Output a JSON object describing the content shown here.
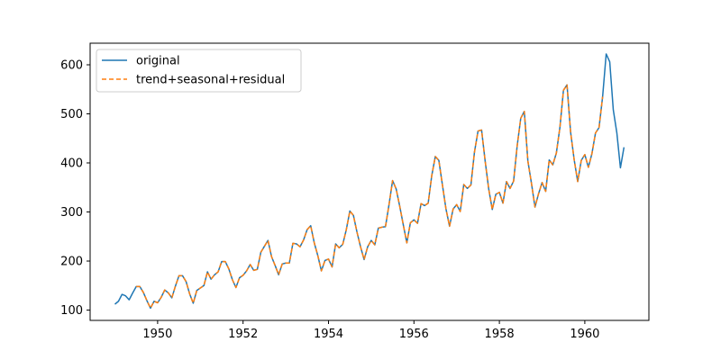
{
  "chart_data": {
    "type": "line",
    "title": "",
    "xlabel": "",
    "ylabel": "",
    "xlim": [
      1948.42,
      1961.5
    ],
    "ylim": [
      79,
      644
    ],
    "x_ticks": [
      1950,
      1952,
      1954,
      1956,
      1958,
      1960
    ],
    "x_tick_labels": [
      "1950",
      "1952",
      "1954",
      "1956",
      "1958",
      "1960"
    ],
    "y_ticks": [
      100,
      200,
      300,
      400,
      500,
      600
    ],
    "y_tick_labels": [
      "100",
      "200",
      "300",
      "400",
      "500",
      "600"
    ],
    "grid": false,
    "legend_position": "upper-left",
    "series": [
      {
        "name": "original",
        "color": "#1f77b4",
        "style": "solid",
        "start": 1949,
        "step": 0.0833333,
        "values": [
          112,
          118,
          132,
          129,
          121,
          135,
          148,
          148,
          136,
          119,
          104,
          118,
          115,
          126,
          141,
          135,
          125,
          149,
          170,
          170,
          158,
          133,
          114,
          140,
          145,
          150,
          178,
          163,
          172,
          178,
          199,
          199,
          184,
          162,
          146,
          166,
          171,
          180,
          193,
          181,
          183,
          218,
          230,
          242,
          209,
          191,
          172,
          194,
          196,
          196,
          236,
          235,
          229,
          243,
          264,
          272,
          237,
          211,
          180,
          201,
          204,
          188,
          235,
          227,
          234,
          264,
          302,
          293,
          259,
          229,
          203,
          229,
          242,
          233,
          267,
          269,
          270,
          315,
          364,
          347,
          312,
          274,
          237,
          278,
          284,
          277,
          317,
          313,
          318,
          374,
          413,
          405,
          355,
          306,
          271,
          306,
          315,
          301,
          356,
          348,
          355,
          422,
          465,
          467,
          404,
          347,
          305,
          336,
          340,
          318,
          362,
          348,
          363,
          435,
          491,
          505,
          404,
          359,
          310,
          337,
          360,
          342,
          406,
          396,
          420,
          472,
          548,
          559,
          463,
          407,
          362,
          405,
          417,
          391,
          419,
          461,
          472,
          535,
          622,
          606,
          508,
          461,
          390,
          432
        ]
      },
      {
        "name": "trend+seasonal+residual",
        "color": "#ff7f0e",
        "style": "dashed",
        "start": 1949.5,
        "step": 0.0833333,
        "values": [
          148,
          148,
          136,
          119,
          104,
          118,
          115,
          126,
          141,
          135,
          125,
          149,
          170,
          170,
          158,
          133,
          114,
          140,
          145,
          150,
          178,
          163,
          172,
          178,
          199,
          199,
          184,
          162,
          146,
          166,
          171,
          180,
          193,
          181,
          183,
          218,
          230,
          242,
          209,
          191,
          172,
          194,
          196,
          196,
          236,
          235,
          229,
          243,
          264,
          272,
          237,
          211,
          180,
          201,
          204,
          188,
          235,
          227,
          234,
          264,
          302,
          293,
          259,
          229,
          203,
          229,
          242,
          233,
          267,
          269,
          270,
          315,
          364,
          347,
          312,
          274,
          237,
          278,
          284,
          277,
          317,
          313,
          318,
          374,
          413,
          405,
          355,
          306,
          271,
          306,
          315,
          301,
          356,
          348,
          355,
          422,
          465,
          467,
          404,
          347,
          305,
          336,
          340,
          318,
          362,
          348,
          363,
          435,
          491,
          505,
          404,
          359,
          310,
          337,
          360,
          342,
          406,
          396,
          420,
          472,
          548,
          559,
          463,
          407,
          362,
          405,
          417,
          391,
          419,
          461,
          472,
          535
        ]
      }
    ]
  }
}
